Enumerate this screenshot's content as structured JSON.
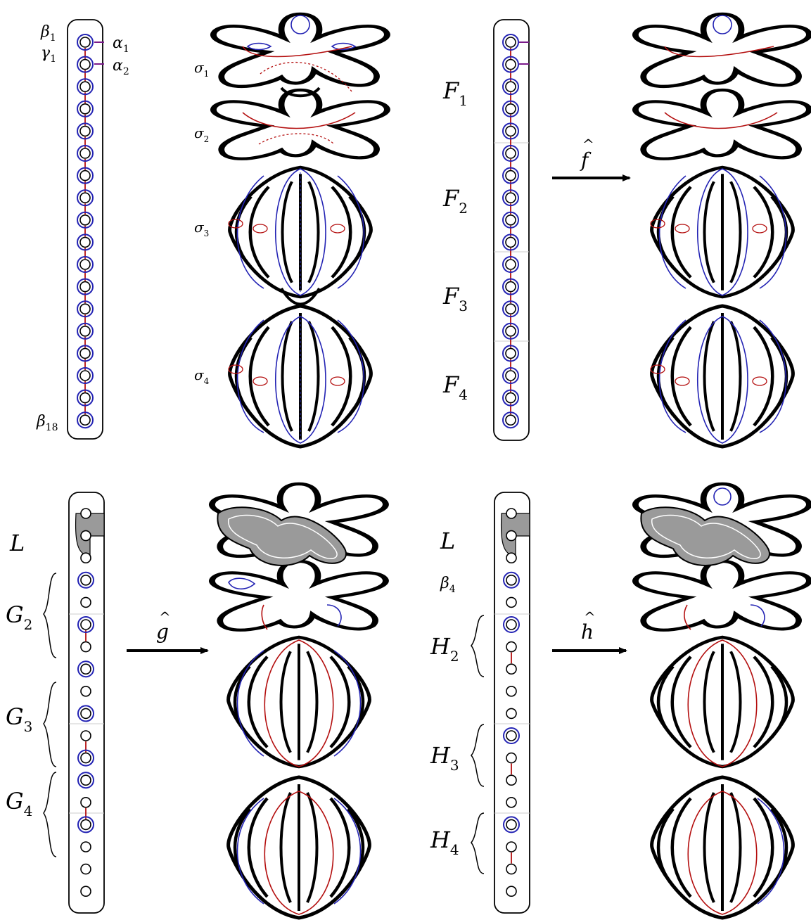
{
  "panels": {
    "tl": {
      "labels": {
        "beta1": "β",
        "beta1_sub": "1",
        "gamma1": "γ",
        "gamma1_sub": "1",
        "alpha1": "α",
        "alpha1_sub": "1",
        "alpha2": "α",
        "alpha2_sub": "2",
        "beta18": "β",
        "beta18_sub": "18"
      }
    },
    "sigma_labels": [
      {
        "t": "σ",
        "s": "1"
      },
      {
        "t": "σ",
        "s": "2"
      },
      {
        "t": "σ",
        "s": "3"
      },
      {
        "t": "σ",
        "s": "4"
      }
    ],
    "F_labels": [
      {
        "t": "F",
        "s": "1"
      },
      {
        "t": "F",
        "s": "2"
      },
      {
        "t": "F",
        "s": "3"
      },
      {
        "t": "F",
        "s": "4"
      }
    ],
    "G_labels": [
      {
        "t": "G",
        "s": "2"
      },
      {
        "t": "G",
        "s": "3"
      },
      {
        "t": "G",
        "s": "4"
      }
    ],
    "H_labels": [
      {
        "t": "H",
        "s": "2"
      },
      {
        "t": "H",
        "s": "3"
      },
      {
        "t": "H",
        "s": "4"
      }
    ],
    "L_left": "L",
    "L_right": "L",
    "beta4": {
      "t": "β",
      "s": "4"
    },
    "arrows": {
      "f": "f",
      "g": "g",
      "h": "h",
      "hat": "^"
    }
  },
  "colors": {
    "blue": "#2323b4",
    "red": "#b40f0f",
    "purple": "#7a1a8a",
    "gray": "#9a9a9a",
    "black": "#000000"
  }
}
